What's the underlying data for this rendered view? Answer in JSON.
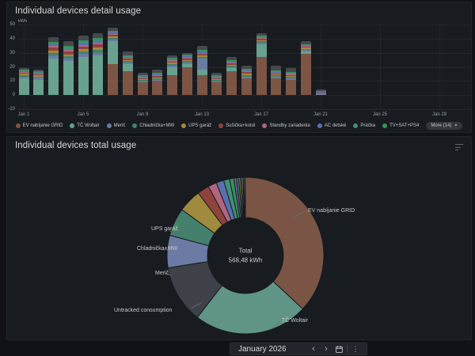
{
  "detail_panel": {
    "title": "Individual devices detail usage",
    "unit_label": "kWh",
    "more_label": "More (14)",
    "legend": [
      {
        "label": "EV nabíjanie GRID",
        "color": "#7d5544"
      },
      {
        "label": "TČ Woltair",
        "color": "#68a18f"
      },
      {
        "label": "Merič",
        "color": "#6b7ba4"
      },
      {
        "label": "Chladnička+MW",
        "color": "#44806b"
      },
      {
        "label": "UPS garáž",
        "color": "#a08a3d"
      },
      {
        "label": "Sušička+kotol",
        "color": "#8e443d"
      },
      {
        "label": "Standby zariadenia",
        "color": "#b06680"
      },
      {
        "label": "AC detské",
        "color": "#5a6fae"
      },
      {
        "label": "Práčka",
        "color": "#3f8f7a"
      },
      {
        "label": "TV+SAT+PS4",
        "color": "#379158"
      }
    ]
  },
  "total_panel": {
    "title": "Individual devices total usage",
    "center_title": "Total",
    "center_value": "568,48 kWh"
  },
  "timepicker": {
    "label": "January 2026",
    "prev_glyph": "‹",
    "next_glyph": "›",
    "kebab_glyph": "⋮"
  },
  "chart_data": [
    {
      "type": "bar",
      "stacked": true,
      "title": "Individual devices detail usage",
      "ylabel": "kWh",
      "ylim": [
        -10,
        50
      ],
      "y_ticks": [
        50,
        40,
        30,
        20,
        10,
        0,
        -10
      ],
      "x_axis_ticks": [
        "Jan 1",
        "Jan 5",
        "Jan 9",
        "Jan 13",
        "Jan 17",
        "Jan 21",
        "Jan 25",
        "Jan 29"
      ],
      "categories": [
        "Jan 1",
        "Jan 2",
        "Jan 3",
        "Jan 4",
        "Jan 5",
        "Jan 6",
        "Jan 7",
        "Jan 8",
        "Jan 9",
        "Jan 10",
        "Jan 11",
        "Jan 12",
        "Jan 13",
        "Jan 14",
        "Jan 15",
        "Jan 16",
        "Jan 17",
        "Jan 18",
        "Jan 19",
        "Jan 20",
        "Jan 21"
      ],
      "series": [
        {
          "name": "EV nabíjanie GRID",
          "color": "#7d5544",
          "values": [
            0,
            0,
            0,
            0,
            0,
            0,
            22,
            17,
            9,
            10,
            14,
            20,
            14,
            9,
            17,
            12,
            27,
            12,
            11,
            29,
            0
          ]
        },
        {
          "name": "TČ Woltair",
          "color": "#68a18f",
          "values": [
            12,
            11,
            26,
            24,
            27,
            28,
            16,
            5,
            0,
            0,
            6,
            2,
            4,
            0,
            2,
            0,
            9,
            0,
            0,
            2,
            0
          ]
        },
        {
          "name": "Merič",
          "color": "#6b7ba4",
          "values": [
            1.2,
            1.2,
            2,
            1.8,
            2,
            2,
            1.2,
            1,
            0.9,
            1,
            1,
            1,
            8,
            0.9,
            1,
            1.2,
            1,
            1,
            1,
            1,
            0.5
          ]
        },
        {
          "name": "Chladnička+MW",
          "color": "#44806b",
          "values": [
            1,
            1,
            1.8,
            1.6,
            1.8,
            1.8,
            1.2,
            1,
            0.8,
            0.9,
            1,
            1,
            1.2,
            0.8,
            0.9,
            1,
            1,
            0.9,
            0.9,
            0.9,
            0.4
          ]
        },
        {
          "name": "UPS garáž",
          "color": "#a08a3d",
          "values": [
            0.9,
            0.9,
            1.6,
            1.5,
            1.6,
            1.7,
            1.1,
            0.9,
            0.7,
            0.8,
            0.9,
            0.9,
            1,
            0.7,
            0.8,
            0.9,
            0.9,
            0.8,
            0.8,
            0.8,
            0.4
          ]
        },
        {
          "name": "Sušička+kotol",
          "color": "#8e443d",
          "values": [
            0.7,
            0.7,
            2.2,
            2,
            2.2,
            2.6,
            1.2,
            1,
            0.7,
            0.8,
            1,
            1.1,
            1.1,
            0.7,
            0.9,
            1.3,
            1.1,
            0.7,
            0.7,
            0.7,
            0.3
          ]
        },
        {
          "name": "Standby zariadenia",
          "color": "#b06680",
          "values": [
            0.6,
            0.6,
            1.1,
            1,
            1.1,
            1.2,
            0.8,
            0.7,
            0.5,
            0.6,
            0.7,
            0.7,
            0.8,
            0.5,
            0.6,
            0.7,
            0.7,
            0.6,
            0.6,
            0.5,
            0.3
          ]
        },
        {
          "name": "AC detské",
          "color": "#5a6fae",
          "values": [
            0.6,
            0.6,
            1.1,
            1,
            1.1,
            1.2,
            0.8,
            0.6,
            0.5,
            0.6,
            0.6,
            0.7,
            0.7,
            0.5,
            0.6,
            0.6,
            0.6,
            0.5,
            0.5,
            0.5,
            0.3
          ]
        },
        {
          "name": "Práčka",
          "color": "#3f8f7a",
          "values": [
            0.5,
            0.5,
            1,
            0.9,
            1,
            1.1,
            0.7,
            0.6,
            0.5,
            0.5,
            0.6,
            0.6,
            0.7,
            0.5,
            0.5,
            0.6,
            0.6,
            0.5,
            0.5,
            0.5,
            0.3
          ]
        },
        {
          "name": "TV+SAT+PS4",
          "color": "#379158",
          "values": [
            0.5,
            0.5,
            1,
            0.9,
            1,
            1.1,
            0.7,
            0.6,
            0.4,
            0.5,
            0.5,
            0.6,
            0.6,
            0.4,
            0.5,
            0.5,
            0.5,
            0.5,
            0.5,
            0.4,
            0.3
          ]
        },
        {
          "name": "More (14)",
          "color": "#46484d",
          "values": [
            1,
            1,
            3.2,
            3.3,
            3.2,
            3.3,
            2.3,
            2.6,
            2,
            2.3,
            1.7,
            1.4,
            2.9,
            2,
            2.2,
            2.2,
            1.6,
            3.5,
            2.5,
            1.7,
            1.2
          ]
        }
      ]
    },
    {
      "type": "pie",
      "donut": true,
      "title": "Individual devices total usage",
      "total_label": "Total",
      "total_value_kwh": 568.48,
      "total_value_text": "568,48 kWh",
      "slices": [
        {
          "name": "EV nabíjanie GRID",
          "value": 210.0,
          "color": "#7a5545",
          "labeled": true
        },
        {
          "name": "TČ Woltair",
          "value": 134.0,
          "color": "#609487",
          "labeled": true
        },
        {
          "name": "Untracked consumption",
          "value": 68.0,
          "color": "#3e4147",
          "labeled": true
        },
        {
          "name": "Merič",
          "value": 38.0,
          "color": "#6b7ba4",
          "labeled": true
        },
        {
          "name": "Chladnička+MW",
          "value": 33.0,
          "color": "#44806b",
          "labeled": true
        },
        {
          "name": "UPS garáž",
          "value": 27.0,
          "color": "#a08a3d",
          "labeled": true
        },
        {
          "name": "Sušička+kotol",
          "value": 14.0,
          "color": "#8e443d",
          "labeled": false
        },
        {
          "name": "Standby zariadenia",
          "value": 10.0,
          "color": "#b06680",
          "labeled": false
        },
        {
          "name": "AC detské",
          "value": 9.0,
          "color": "#5a6fae",
          "labeled": false
        },
        {
          "name": "Práčka",
          "value": 7.0,
          "color": "#3f8f7a",
          "labeled": false
        },
        {
          "name": "TV+SAT+PS4",
          "value": 5.0,
          "color": "#379158",
          "labeled": false
        },
        {
          "name": "unlabeled-1",
          "value": 3.0,
          "color": "#7a57a8",
          "labeled": false
        },
        {
          "name": "unlabeled-2",
          "value": 2.5,
          "color": "#37915f",
          "labeled": false
        },
        {
          "name": "unlabeled-3",
          "value": 2.0,
          "color": "#96832f",
          "labeled": false
        },
        {
          "name": "unlabeled-4",
          "value": 1.8,
          "color": "#8660c5",
          "labeled": false
        },
        {
          "name": "unlabeled-5",
          "value": 1.5,
          "color": "#7fb06a",
          "labeled": false
        },
        {
          "name": "unlabeled-6",
          "value": 1.4,
          "color": "#5878c8",
          "labeled": false
        },
        {
          "name": "unlabeled-7",
          "value": 1.28,
          "color": "#d0a53e",
          "labeled": false
        }
      ]
    }
  ]
}
